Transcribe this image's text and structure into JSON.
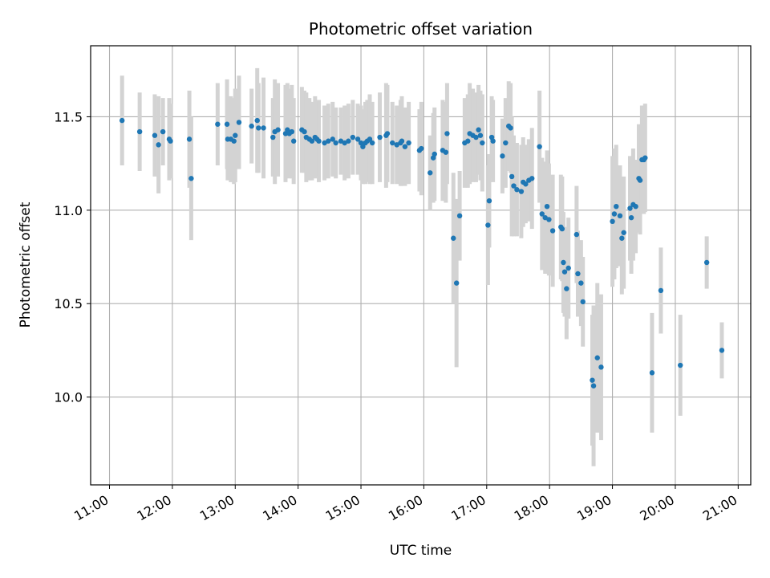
{
  "chart_data": {
    "type": "scatter",
    "title": "Photometric offset variation",
    "xlabel": "UTC time",
    "ylabel": "Photometric offset",
    "x_unit": "hours UTC",
    "xlim": [
      10.7,
      21.2
    ],
    "ylim": [
      9.53,
      11.88
    ],
    "xticks": [
      {
        "value": 11,
        "label": "11:00"
      },
      {
        "value": 12,
        "label": "12:00"
      },
      {
        "value": 13,
        "label": "13:00"
      },
      {
        "value": 14,
        "label": "14:00"
      },
      {
        "value": 15,
        "label": "15:00"
      },
      {
        "value": 16,
        "label": "16:00"
      },
      {
        "value": 17,
        "label": "17:00"
      },
      {
        "value": 18,
        "label": "18:00"
      },
      {
        "value": 19,
        "label": "19:00"
      },
      {
        "value": 20,
        "label": "20:00"
      },
      {
        "value": 21,
        "label": "21:00"
      }
    ],
    "yticks": [
      {
        "value": 10.0,
        "label": "10.0"
      },
      {
        "value": 10.5,
        "label": "10.5"
      },
      {
        "value": 11.0,
        "label": "11.0"
      },
      {
        "value": 11.5,
        "label": "11.5"
      }
    ],
    "grid": true,
    "colors": {
      "points": "#1f77b4",
      "errorbars": "#d3d3d3",
      "grid": "#b0b0b0"
    },
    "points": [
      [
        11.2,
        11.48,
        0.24
      ],
      [
        11.48,
        11.42,
        0.21
      ],
      [
        11.72,
        11.4,
        0.22
      ],
      [
        11.78,
        11.35,
        0.26
      ],
      [
        11.85,
        11.42,
        0.18
      ],
      [
        11.95,
        11.38,
        0.22
      ],
      [
        11.97,
        11.37,
        0.2
      ],
      [
        12.27,
        11.38,
        0.26
      ],
      [
        12.3,
        11.17,
        0.33
      ],
      [
        12.72,
        11.46,
        0.22
      ],
      [
        12.87,
        11.46,
        0.24
      ],
      [
        12.88,
        11.38,
        0.22
      ],
      [
        12.93,
        11.38,
        0.23
      ],
      [
        12.98,
        11.37,
        0.23
      ],
      [
        13.0,
        11.4,
        0.25
      ],
      [
        13.06,
        11.47,
        0.25
      ],
      [
        13.26,
        11.45,
        0.2
      ],
      [
        13.35,
        11.48,
        0.28
      ],
      [
        13.37,
        11.44,
        0.24
      ],
      [
        13.45,
        11.44,
        0.27
      ],
      [
        13.6,
        11.39,
        0.21
      ],
      [
        13.63,
        11.42,
        0.28
      ],
      [
        13.68,
        11.43,
        0.25
      ],
      [
        13.8,
        11.41,
        0.26
      ],
      [
        13.83,
        11.43,
        0.25
      ],
      [
        13.86,
        11.41,
        0.24
      ],
      [
        13.9,
        11.42,
        0.25
      ],
      [
        13.93,
        11.37,
        0.23
      ],
      [
        14.06,
        11.43,
        0.23
      ],
      [
        14.1,
        11.42,
        0.22
      ],
      [
        14.13,
        11.39,
        0.24
      ],
      [
        14.18,
        11.38,
        0.22
      ],
      [
        14.22,
        11.37,
        0.21
      ],
      [
        14.27,
        11.39,
        0.22
      ],
      [
        14.3,
        11.38,
        0.2
      ],
      [
        14.33,
        11.37,
        0.22
      ],
      [
        14.42,
        11.36,
        0.2
      ],
      [
        14.48,
        11.37,
        0.2
      ],
      [
        14.55,
        11.38,
        0.2
      ],
      [
        14.6,
        11.36,
        0.19
      ],
      [
        14.68,
        11.37,
        0.18
      ],
      [
        14.74,
        11.36,
        0.2
      ],
      [
        14.8,
        11.37,
        0.2
      ],
      [
        14.87,
        11.39,
        0.2
      ],
      [
        14.95,
        11.38,
        0.19
      ],
      [
        15.0,
        11.36,
        0.2
      ],
      [
        15.03,
        11.34,
        0.2
      ],
      [
        15.07,
        11.36,
        0.22
      ],
      [
        15.1,
        11.37,
        0.22
      ],
      [
        15.14,
        11.38,
        0.24
      ],
      [
        15.18,
        11.36,
        0.22
      ],
      [
        15.3,
        11.39,
        0.24
      ],
      [
        15.4,
        11.4,
        0.28
      ],
      [
        15.42,
        11.41,
        0.26
      ],
      [
        15.5,
        11.36,
        0.22
      ],
      [
        15.57,
        11.35,
        0.21
      ],
      [
        15.63,
        11.36,
        0.23
      ],
      [
        15.65,
        11.37,
        0.24
      ],
      [
        15.7,
        11.34,
        0.21
      ],
      [
        15.76,
        11.36,
        0.22
      ],
      [
        15.93,
        11.32,
        0.22
      ],
      [
        15.96,
        11.33,
        0.25
      ],
      [
        16.1,
        11.2,
        0.2
      ],
      [
        16.15,
        11.28,
        0.24
      ],
      [
        16.17,
        11.3,
        0.25
      ],
      [
        16.3,
        11.32,
        0.27
      ],
      [
        16.35,
        11.31,
        0.27
      ],
      [
        16.37,
        11.41,
        0.27
      ],
      [
        16.47,
        10.85,
        0.35
      ],
      [
        16.52,
        10.61,
        0.45
      ],
      [
        16.57,
        10.97,
        0.24
      ],
      [
        16.65,
        11.36,
        0.24
      ],
      [
        16.7,
        11.37,
        0.25
      ],
      [
        16.73,
        11.41,
        0.27
      ],
      [
        16.78,
        11.4,
        0.25
      ],
      [
        16.83,
        11.39,
        0.24
      ],
      [
        16.87,
        11.43,
        0.24
      ],
      [
        16.9,
        11.4,
        0.24
      ],
      [
        16.93,
        11.36,
        0.26
      ],
      [
        17.02,
        10.92,
        0.32
      ],
      [
        17.04,
        11.05,
        0.25
      ],
      [
        17.08,
        11.39,
        0.22
      ],
      [
        17.1,
        11.37,
        0.22
      ],
      [
        17.25,
        11.29,
        0.2
      ],
      [
        17.3,
        11.36,
        0.24
      ],
      [
        17.35,
        11.45,
        0.24
      ],
      [
        17.38,
        11.44,
        0.24
      ],
      [
        17.4,
        11.18,
        0.32
      ],
      [
        17.43,
        11.13,
        0.27
      ],
      [
        17.48,
        11.11,
        0.25
      ],
      [
        17.55,
        11.1,
        0.25
      ],
      [
        17.58,
        11.15,
        0.24
      ],
      [
        17.62,
        11.14,
        0.21
      ],
      [
        17.67,
        11.16,
        0.22
      ],
      [
        17.72,
        11.17,
        0.27
      ],
      [
        17.84,
        11.34,
        0.3
      ],
      [
        17.88,
        10.98,
        0.3
      ],
      [
        17.93,
        10.96,
        0.3
      ],
      [
        17.96,
        11.02,
        0.3
      ],
      [
        17.99,
        10.95,
        0.3
      ],
      [
        18.05,
        10.89,
        0.3
      ],
      [
        18.18,
        10.91,
        0.28
      ],
      [
        18.2,
        10.9,
        0.28
      ],
      [
        18.22,
        10.72,
        0.27
      ],
      [
        18.24,
        10.67,
        0.24
      ],
      [
        18.27,
        10.58,
        0.27
      ],
      [
        18.3,
        10.69,
        0.27
      ],
      [
        18.43,
        10.87,
        0.26
      ],
      [
        18.45,
        10.66,
        0.23
      ],
      [
        18.5,
        10.61,
        0.23
      ],
      [
        18.53,
        10.51,
        0.24
      ],
      [
        18.68,
        10.09,
        0.35
      ],
      [
        18.7,
        10.06,
        0.43
      ],
      [
        18.76,
        10.21,
        0.4
      ],
      [
        18.82,
        10.16,
        0.39
      ],
      [
        19.0,
        10.94,
        0.35
      ],
      [
        19.03,
        10.98,
        0.35
      ],
      [
        19.06,
        11.02,
        0.33
      ],
      [
        19.12,
        10.97,
        0.27
      ],
      [
        19.15,
        10.85,
        0.3
      ],
      [
        19.18,
        10.88,
        0.3
      ],
      [
        19.28,
        11.01,
        0.28
      ],
      [
        19.3,
        10.96,
        0.3
      ],
      [
        19.33,
        11.03,
        0.3
      ],
      [
        19.37,
        11.02,
        0.25
      ],
      [
        19.42,
        11.17,
        0.29
      ],
      [
        19.44,
        11.16,
        0.29
      ],
      [
        19.47,
        11.27,
        0.29
      ],
      [
        19.5,
        11.27,
        0.29
      ],
      [
        19.52,
        11.28,
        0.29
      ],
      [
        19.63,
        10.13,
        0.32
      ],
      [
        19.77,
        10.57,
        0.23
      ],
      [
        20.08,
        10.17,
        0.27
      ],
      [
        20.5,
        10.72,
        0.14
      ],
      [
        20.74,
        10.25,
        0.15
      ]
    ]
  }
}
